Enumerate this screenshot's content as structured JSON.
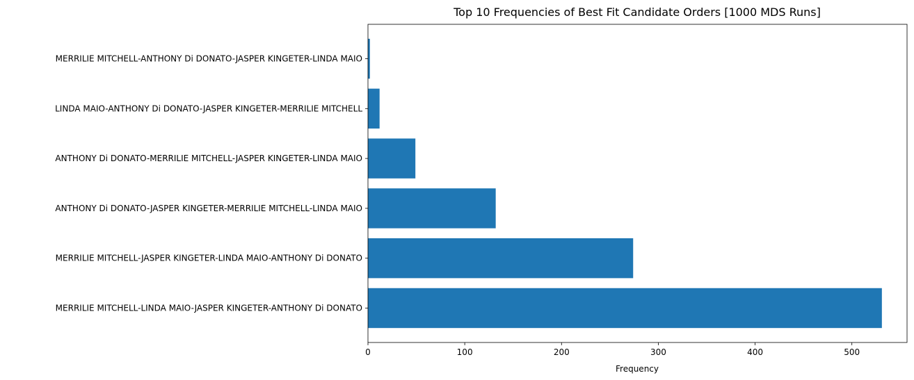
{
  "chart_data": {
    "type": "bar",
    "orientation": "horizontal",
    "title": "Top 10 Frequencies of Best Fit Candidate Orders [1000 MDS Runs]",
    "xlabel": "Frequency",
    "ylabel": "",
    "categories": [
      "MERRILIE MITCHELL-LINDA MAIO-JASPER KINGETER-ANTHONY Di DONATO",
      "MERRILIE MITCHELL-JASPER KINGETER-LINDA MAIO-ANTHONY Di DONATO",
      "ANTHONY Di DONATO-JASPER KINGETER-MERRILIE MITCHELL-LINDA MAIO",
      "ANTHONY Di DONATO-MERRILIE MITCHELL-JASPER KINGETER-LINDA MAIO",
      "LINDA MAIO-ANTHONY Di DONATO-JASPER KINGETER-MERRILIE MITCHELL",
      "MERRILIE MITCHELL-ANTHONY Di DONATO-JASPER KINGETER-LINDA MAIO"
    ],
    "values": [
      531,
      274,
      132,
      49,
      12,
      2
    ],
    "xlim": [
      0,
      557
    ],
    "xticks": [
      0,
      100,
      200,
      300,
      400,
      500
    ],
    "grid": false,
    "color": "#1f77b4"
  }
}
